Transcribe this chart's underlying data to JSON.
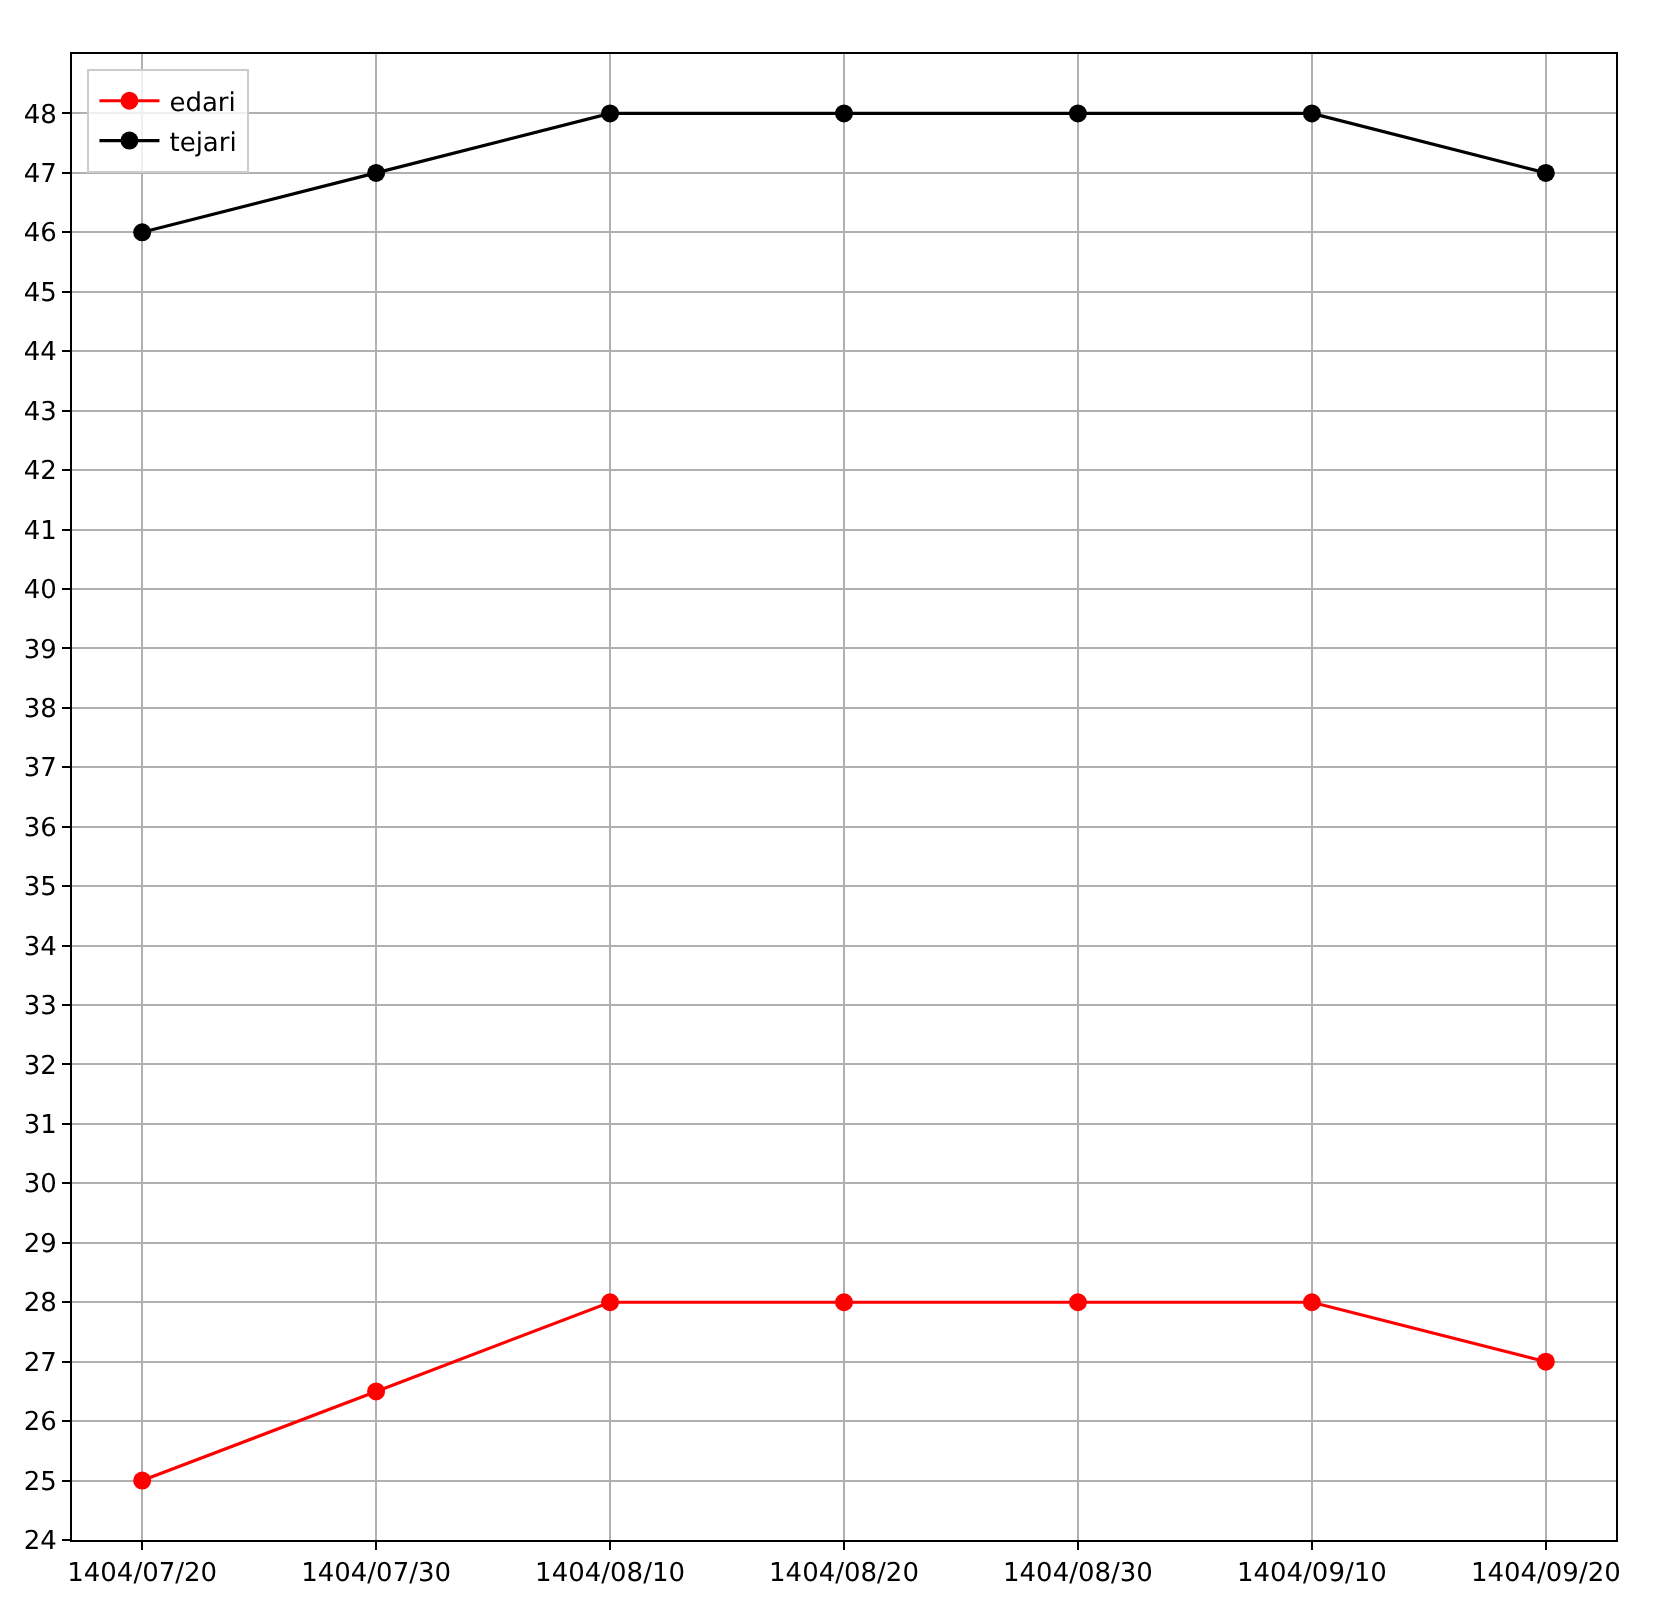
{
  "chart_data": {
    "type": "line",
    "categories": [
      "1404/07/20",
      "1404/07/30",
      "1404/08/10",
      "1404/08/20",
      "1404/08/30",
      "1404/09/10",
      "1404/09/20"
    ],
    "series": [
      {
        "name": "edari",
        "color": "#ff0000",
        "values": [
          25,
          26.5,
          28,
          28,
          28,
          28,
          27
        ]
      },
      {
        "name": "tejari",
        "color": "#000000",
        "values": [
          46,
          47,
          48,
          48,
          48,
          48,
          47
        ]
      }
    ],
    "ylim": [
      24,
      49
    ],
    "yticks": [
      24,
      25,
      26,
      27,
      28,
      29,
      30,
      31,
      32,
      33,
      34,
      35,
      36,
      37,
      38,
      39,
      40,
      41,
      42,
      43,
      44,
      45,
      46,
      47,
      48
    ],
    "grid": true,
    "legend": "top left",
    "marker": "circle",
    "line_style": "solid"
  }
}
